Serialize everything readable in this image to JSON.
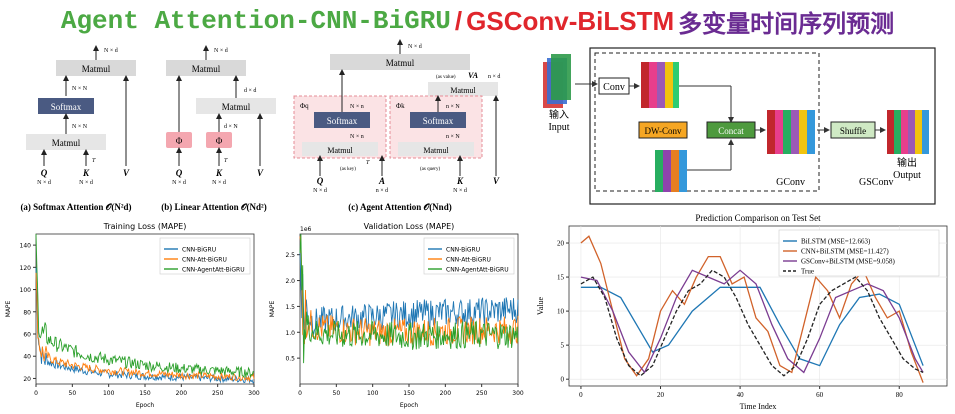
{
  "title": {
    "part1": "Agent Attention-CNN-BiGRU",
    "slash": "/",
    "part2": "GSConv-BiLSTM",
    "part3": "多变量时间序列预测"
  },
  "attention": {
    "softmax": {
      "caption": "(a) Softmax Attention 𝒪(N²d)",
      "matmul_top": "Matmul",
      "softmax": "Softmax",
      "matmul_bottom": "Matmul",
      "dim_top": "N × d",
      "dim_mid": "N × N",
      "dim_low": "N × N",
      "q": "Q",
      "k": "K",
      "v": "V",
      "nd_q": "N × d",
      "nd_k": "N × d",
      "t": "T"
    },
    "linear": {
      "caption": "(b) Linear Attention 𝒪(Nd²)",
      "matmul_top": "Matmul",
      "matmul_mid": "Matmul",
      "phi": "Φ",
      "dim_top": "N × d",
      "dim_mid": "d × d",
      "dim_phi": "d × N",
      "q": "Q",
      "k": "K",
      "v": "V",
      "nd_q": "N × d",
      "nd_k": "N × d",
      "t": "T"
    },
    "agent": {
      "caption": "(c) Agent Attention 𝒪(Nnd)",
      "matmul_top": "Matmul",
      "softmax_left": "Softmax",
      "softmax_right": "Softmax",
      "matmul_left": "Matmul",
      "matmul_right": "Matmul",
      "phi_q": "Φq",
      "phi_k": "Φk",
      "as_value": "(as value)",
      "va": "VA",
      "as_key": "(as key)",
      "as_query": "(as query)",
      "dim_top": "N × d",
      "dim_va": "n × d",
      "dim_nn1": "N × n",
      "dim_nn2": "N × n",
      "dim_nn3": "n × N",
      "dim_nn4": "n × N",
      "q": "Q",
      "a": "A",
      "k": "K",
      "v": "V",
      "nd_q": "N × d",
      "nd_a": "n × d",
      "nd_k": "N × d",
      "t": "T"
    }
  },
  "gsconv": {
    "input": "输入",
    "input_en": "Input",
    "conv": "Conv",
    "dwconv": "DW-Conv",
    "concat": "Concat",
    "shuffle": "Shuffle",
    "output": "输出",
    "output_en": "Output",
    "gconv_label": "GConv",
    "gsconv_label": "GSConv",
    "colors": {
      "dwconv": "#f5a623",
      "concat": "#4e9a3e",
      "shuffle": "#cfe9c4"
    }
  },
  "charts": {
    "training": {
      "chart_data": {
        "type": "line",
        "title": "Training Loss (MAPE)",
        "xlabel": "Epoch",
        "ylabel": "MAPE",
        "xlim": [
          0,
          300
        ],
        "ylim": [
          15,
          150
        ],
        "xticks": [
          "0",
          "50",
          "100",
          "150",
          "200",
          "250",
          "300"
        ],
        "yticks": [
          "20",
          "40",
          "60",
          "80",
          "100",
          "120",
          "140"
        ],
        "series": [
          {
            "name": "CNN-BiGRU",
            "color": "#1f77b4",
            "x": [
              0,
              3,
              6,
              10,
              20,
              30,
              50,
              75,
              100,
              150,
              200,
              250,
              300
            ],
            "y": [
              120,
              60,
              45,
              38,
              34,
              32,
              29,
              26,
              24,
              22,
              21,
              20,
              19
            ]
          },
          {
            "name": "CNN-Att-BiGRU",
            "color": "#ff7f0e",
            "x": [
              0,
              3,
              6,
              10,
              20,
              30,
              50,
              75,
              100,
              150,
              200,
              250,
              300
            ],
            "y": [
              110,
              58,
              47,
              42,
              38,
              35,
              32,
              29,
              27,
              25,
              23,
              22,
              21
            ]
          },
          {
            "name": "CNN-AgentAtt-BiGRU",
            "color": "#2ca02c",
            "x": [
              0,
              3,
              6,
              10,
              20,
              30,
              50,
              75,
              100,
              150,
              200,
              250,
              300
            ],
            "y": [
              140,
              80,
              62,
              58,
              54,
              50,
              45,
              40,
              37,
              32,
              29,
              27,
              25
            ]
          }
        ]
      }
    },
    "validation": {
      "chart_data": {
        "type": "line",
        "title": "Validation Loss (MAPE)",
        "xlabel": "Epoch",
        "ylabel": "MAPE",
        "scale_label": "1e6",
        "xlim": [
          0,
          300
        ],
        "ylim": [
          0,
          2.9
        ],
        "xticks": [
          "0",
          "50",
          "100",
          "150",
          "200",
          "250",
          "300"
        ],
        "yticks": [
          "0.5",
          "1.0",
          "1.5",
          "2.0",
          "2.5"
        ],
        "series": [
          {
            "name": "CNN-BiGRU",
            "color": "#1f77b4",
            "x": [
              0,
              5,
              20,
              50,
              100,
              150,
              200,
              250,
              300
            ],
            "y": [
              2.6,
              1.4,
              1.2,
              1.25,
              1.3,
              1.35,
              1.38,
              1.4,
              1.45
            ]
          },
          {
            "name": "CNN-Att-BiGRU",
            "color": "#ff7f0e",
            "x": [
              0,
              5,
              20,
              50,
              100,
              150,
              200,
              250,
              300
            ],
            "y": [
              2.7,
              1.3,
              1.1,
              1.05,
              1.0,
              1.0,
              1.02,
              1.05,
              1.05
            ]
          },
          {
            "name": "CNN-AgentAtt-BiGRU",
            "color": "#2ca02c",
            "x": [
              0,
              5,
              20,
              50,
              100,
              150,
              200,
              250,
              300
            ],
            "y": [
              2.8,
              1.2,
              1.0,
              0.95,
              0.95,
              0.92,
              0.95,
              0.95,
              0.95
            ]
          }
        ]
      }
    },
    "prediction": {
      "chart_data": {
        "type": "line",
        "title": "Prediction Comparison on Test Set",
        "xlabel": "Time Index",
        "ylabel": "Value",
        "xlim": [
          -3,
          92
        ],
        "ylim": [
          -1,
          22.5
        ],
        "xticks": [
          "0",
          "20",
          "40",
          "60",
          "80"
        ],
        "yticks": [
          "0",
          "5",
          "10",
          "15",
          "20"
        ],
        "series": [
          {
            "name": "BiLSTM (MSE=12.663)",
            "color": "#1f77b4",
            "dash": false,
            "x": [
              0,
              5,
              10,
              14,
              18,
              22,
              28,
              35,
              40,
              45,
              50,
              55,
              60,
              65,
              70,
              75,
              80,
              86
            ],
            "y": [
              13.5,
              13.5,
              12,
              8,
              4,
              5,
              10,
              13.5,
              13.5,
              13.5,
              8,
              3,
              2,
              8,
              12,
              12.5,
              11,
              2
            ]
          },
          {
            "name": "CNN+BiLSTM (MSE=11.427)",
            "color": "#d1622a",
            "dash": false,
            "x": [
              0,
              2,
              5,
              8,
              11,
              14,
              17,
              20,
              23,
              26,
              29,
              32,
              35,
              38,
              41,
              44,
              47,
              50,
              53,
              56,
              59,
              62,
              65,
              68,
              71,
              74,
              77,
              80,
              83,
              86
            ],
            "y": [
              20,
              21,
              17,
              10,
              3,
              0.5,
              3,
              10,
              13,
              11,
              15,
              18,
              18,
              14,
              15,
              9,
              7,
              2,
              1,
              8,
              15,
              13,
              9,
              14,
              16,
              12,
              9,
              10,
              4,
              -0.5
            ]
          },
          {
            "name": "GSConv+BiLSTM (MSE=9.058)",
            "color": "#7b3c91",
            "dash": false,
            "x": [
              0,
              4,
              8,
              12,
              16,
              20,
              24,
              28,
              32,
              36,
              40,
              44,
              48,
              52,
              56,
              60,
              64,
              68,
              72,
              76,
              80,
              84,
              86
            ],
            "y": [
              15,
              14.5,
              10,
              4,
              1,
              6,
              12,
              16,
              15,
              14,
              16,
              14,
              8,
              3,
              1,
              6,
              12,
              13,
              14,
              13,
              9,
              3,
              1
            ]
          },
          {
            "name": "True",
            "color": "#222222",
            "dash": true,
            "x": [
              0,
              3,
              6,
              9,
              12,
              15,
              18,
              21,
              24,
              27,
              30,
              33,
              36,
              39,
              42,
              45,
              48,
              51,
              54,
              57,
              60,
              63,
              66,
              69,
              72,
              75,
              78,
              81,
              84,
              86
            ],
            "y": [
              14,
              15,
              12,
              6,
              2,
              0.5,
              2,
              6,
              10,
              13,
              14,
              16,
              15,
              12,
              8,
              5,
              2,
              0.5,
              2,
              6,
              11,
              13,
              14,
              15,
              13,
              9,
              6,
              3,
              1.5,
              1
            ]
          }
        ]
      }
    }
  }
}
